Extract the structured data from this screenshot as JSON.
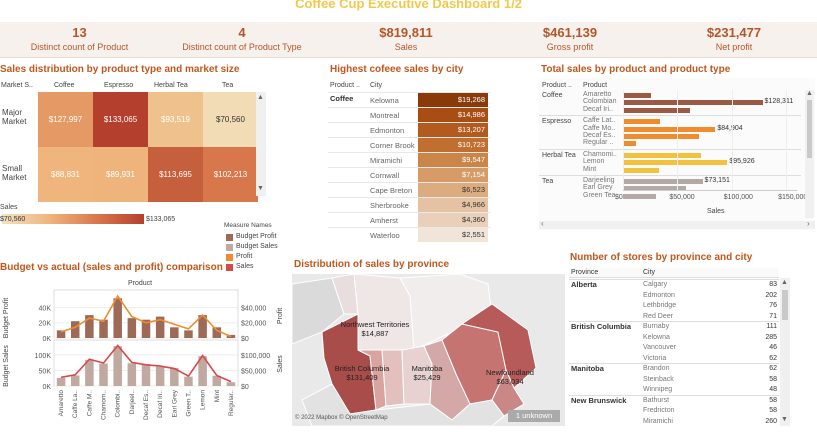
{
  "title": "Coffee Cup Executive Dashboard 1/2",
  "kpis": [
    {
      "value": "13",
      "label": "Distinct count of Product"
    },
    {
      "value": "4",
      "label": "Distinct count of Product Type"
    },
    {
      "value": "$819,811",
      "label": "Sales"
    },
    {
      "value": "$461,139",
      "label": "Gross profit"
    },
    {
      "value": "$231,477",
      "label": "Net profit"
    }
  ],
  "heatmap": {
    "title": "Sales distribution by product type and market size",
    "header_market": "Market S..",
    "columns": [
      "Coffee",
      "Espresso",
      "Herbal Tea",
      "Tea"
    ],
    "rows": [
      {
        "label": "Major Market",
        "values": [
          "$127,997",
          "$133,065",
          "$93,519",
          "$70,560"
        ],
        "colors": [
          "#e59a66",
          "#b53f2d",
          "#efc28d",
          "#f1dcb5"
        ]
      },
      {
        "label": "Small Market",
        "values": [
          "$88,831",
          "$89,931",
          "$113,695",
          "$102,213"
        ],
        "colors": [
          "#f0b57d",
          "#efb47c",
          "#c6603c",
          "#d9774c"
        ]
      }
    ],
    "legend_label": "Sales",
    "legend_min": "$70,560",
    "legend_max": "$133,065"
  },
  "city_sales": {
    "title": "Highest cofeee sales by city",
    "header_product": "Product ..",
    "header_city": "City",
    "product": "Coffee",
    "rows": [
      {
        "city": "Kelowna",
        "value": "$19,268",
        "color": "#8a3a08"
      },
      {
        "city": "Montreal",
        "value": "$14,986",
        "color": "#a84d14"
      },
      {
        "city": "Edmonton",
        "value": "$13,207",
        "color": "#b35a1e"
      },
      {
        "city": "Corner Brook",
        "value": "$10,723",
        "color": "#c06f30"
      },
      {
        "city": "Miramichi",
        "value": "$9,547",
        "color": "#cc8548"
      },
      {
        "city": "Cornwall",
        "value": "$7,154",
        "color": "#d69b66"
      },
      {
        "city": "Cape Breton",
        "value": "$6,523",
        "color": "#ddac7e"
      },
      {
        "city": "Sherbrooke",
        "value": "$4,966",
        "color": "#e5c2a2"
      },
      {
        "city": "Amherst",
        "value": "$4,360",
        "color": "#ead0b8"
      },
      {
        "city": "Waterloo",
        "value": "$2,551",
        "color": "#f1e4d8"
      }
    ]
  },
  "product_sales": {
    "title": "Total sales by product and product type",
    "header_type": "Product ..",
    "header_product": "Product",
    "xlabel": "Sales",
    "ticks": [
      "$0",
      "$50,000",
      "$100,000",
      "$150,000"
    ],
    "xmax": 160000,
    "groups": [
      {
        "type": "Coffee",
        "color": "#9c5a45",
        "items": [
          {
            "name": "Amaretto",
            "value": 26000,
            "label": ""
          },
          {
            "name": "Colombian",
            "value": 128311,
            "label": "$128,311"
          },
          {
            "name": "Decaf Iri..",
            "value": 62000,
            "label": ""
          }
        ]
      },
      {
        "type": "Espresso",
        "color": "#f08c2e",
        "items": [
          {
            "name": "Caffe Lat..",
            "value": 34000,
            "label": ""
          },
          {
            "name": "Caffe Mo..",
            "value": 84904,
            "label": "$84,904"
          },
          {
            "name": "Decaf Es..",
            "value": 70000,
            "label": ""
          },
          {
            "name": "Regular ..",
            "value": 12000,
            "label": ""
          }
        ]
      },
      {
        "type": "Herbal Tea",
        "color": "#f4c13c",
        "items": [
          {
            "name": "Chamomi..",
            "value": 72000,
            "label": ""
          },
          {
            "name": "Lemon",
            "value": 95926,
            "label": "$95,926"
          },
          {
            "name": "Mint",
            "value": 33000,
            "label": ""
          }
        ]
      },
      {
        "type": "Tea",
        "color": "#b3aaa5",
        "items": [
          {
            "name": "Darjeeling",
            "value": 73151,
            "label": "$73,151"
          },
          {
            "name": "Earl Grey",
            "value": 58000,
            "label": ""
          },
          {
            "name": "Green Tea",
            "value": 30000,
            "label": ""
          }
        ]
      }
    ]
  },
  "measure_legend": {
    "title": "Measure Names",
    "items": [
      {
        "label": "Budget Profit",
        "color": "#9c6a57"
      },
      {
        "label": "Budget Sales",
        "color": "#c0a9a1"
      },
      {
        "label": "Profit",
        "color": "#f08c2e"
      },
      {
        "label": "Sales",
        "color": "#d94848"
      }
    ]
  },
  "budget_chart": {
    "title": "Budget vs actual (sales and profit) comparison",
    "header": "Product",
    "y_left_top_label": "Budget Profit",
    "y_left_bottom_label": "Budget Sales",
    "y_right_top_label": "Profit",
    "y_right_bottom_label": "Sales",
    "left_top_ticks": [
      "40K",
      "20K",
      "0K"
    ],
    "right_top_ticks": [
      "$40,000",
      "$20,000",
      "$0"
    ],
    "left_bottom_ticks": [
      "100K",
      "50K",
      "0K"
    ],
    "right_bottom_ticks": [
      "$100,000",
      "$50,000",
      "$0"
    ],
    "products": [
      "Amaretto",
      "Caffe La..",
      "Caffe M..",
      "Chamom..",
      "Colombi..",
      "Darjeel..",
      "Decaf Es..",
      "Decaf Iri..",
      "Earl Grey",
      "Green T..",
      "Lemon",
      "Mint",
      "Regular.."
    ],
    "budget_profit": [
      10000,
      22000,
      30000,
      24000,
      52000,
      26000,
      24000,
      28000,
      14000,
      10000,
      30000,
      14000,
      4000
    ],
    "profit": [
      8000,
      14000,
      26000,
      22000,
      55000,
      28000,
      20000,
      24000,
      18000,
      12000,
      30000,
      10000,
      2000
    ],
    "budget_sales": [
      26000,
      34000,
      84000,
      72000,
      128000,
      73000,
      70000,
      62000,
      58000,
      30000,
      96000,
      33000,
      12000
    ],
    "sales": [
      28000,
      36000,
      86000,
      74000,
      130000,
      76000,
      68000,
      64000,
      56000,
      32000,
      98000,
      34000,
      14000
    ]
  },
  "map": {
    "title": "Distribution of sales by province",
    "regions": [
      {
        "name": "Northwest Territories",
        "value": "$14,887"
      },
      {
        "name": "British Columbia",
        "value": "$131,409"
      },
      {
        "name": "Manitoba",
        "value": "$25,429"
      },
      {
        "name": "Newfoundland",
        "value": "$63,034"
      }
    ],
    "copyright": "© 2022 Mapbox © OpenStreetMap",
    "unknown_badge": "1 unknown"
  },
  "stores": {
    "title": "Number of stores by province and city",
    "header_province": "Province",
    "header_city": "City",
    "groups": [
      {
        "province": "Alberta",
        "rows": [
          [
            "Calgary",
            "83"
          ],
          [
            "Edmonton",
            "202"
          ],
          [
            "Lethbridge",
            "76"
          ],
          [
            "Red Deer",
            "71"
          ]
        ]
      },
      {
        "province": "British Columbia",
        "rows": [
          [
            "Burnaby",
            "111"
          ],
          [
            "Kelowna",
            "285"
          ],
          [
            "Vancouver",
            "46"
          ],
          [
            "Victoria",
            "62"
          ]
        ]
      },
      {
        "province": "Manitoba",
        "rows": [
          [
            "Brandon",
            "62"
          ],
          [
            "Steinback",
            "58"
          ],
          [
            "Winnipeg",
            "48"
          ]
        ]
      },
      {
        "province": "New Brunswick",
        "rows": [
          [
            "Bathurst",
            "58"
          ],
          [
            "Fredricton",
            "58"
          ],
          [
            "Miramichi",
            "260"
          ]
        ]
      }
    ]
  }
}
